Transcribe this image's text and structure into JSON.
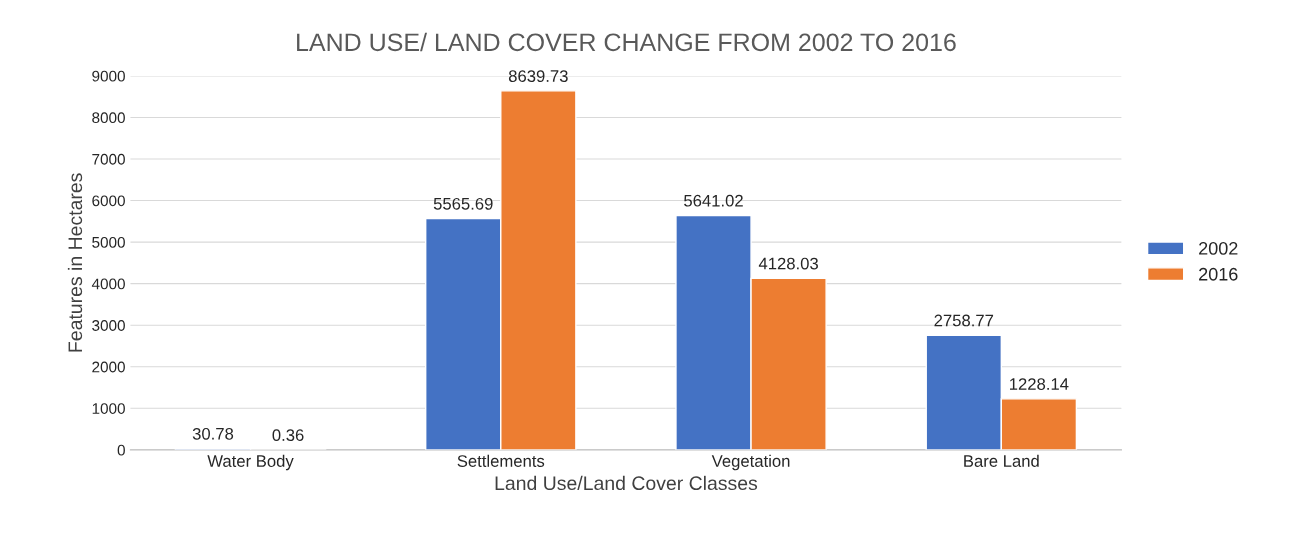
{
  "chart_data": {
    "type": "bar",
    "title": "LAND USE/ LAND COVER CHANGE FROM 2002 TO 2016",
    "xlabel": "Land Use/Land Cover Classes",
    "ylabel": "Features in Hectares",
    "categories": [
      "Water Body",
      "Settlements",
      "Vegetation",
      "Bare Land"
    ],
    "series": [
      {
        "name": "2002",
        "color": "#4472c4",
        "values": [
          30.78,
          5565.69,
          5641.02,
          2758.77
        ]
      },
      {
        "name": "2016",
        "color": "#ed7d31",
        "values": [
          0.36,
          8639.73,
          4128.03,
          1228.14
        ]
      }
    ],
    "ylim": [
      0,
      9000
    ],
    "yticks": [
      0,
      1000,
      2000,
      3000,
      4000,
      5000,
      6000,
      7000,
      8000,
      9000
    ],
    "grid": "y",
    "legend": "right",
    "data_labels": true
  }
}
